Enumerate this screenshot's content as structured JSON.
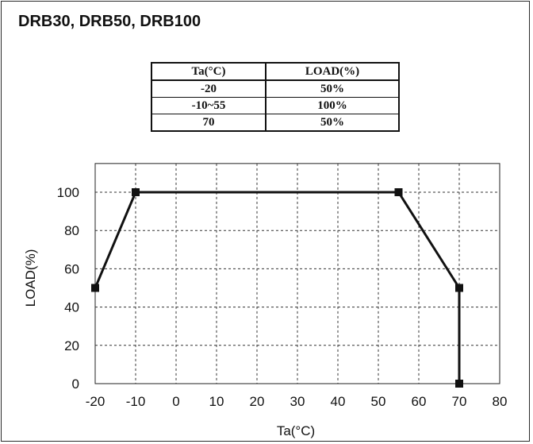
{
  "title": "DRB30, DRB50, DRB100",
  "table": {
    "headers": [
      "Ta(°C)",
      "LOAD(%)"
    ],
    "rows": [
      [
        "-20",
        "50%"
      ],
      [
        "-10~55",
        "100%"
      ],
      [
        "70",
        "50%"
      ]
    ]
  },
  "chart_data": {
    "type": "line",
    "xlabel": "Ta(°C)",
    "ylabel": "LOAD(%)",
    "xlim": [
      -20,
      80
    ],
    "ylim": [
      0,
      100
    ],
    "x_ticks": [
      -20,
      -10,
      0,
      10,
      20,
      30,
      40,
      50,
      60,
      70,
      80
    ],
    "y_ticks": [
      0,
      20,
      40,
      60,
      80,
      100
    ],
    "y_max_extent": 115,
    "grid": true,
    "series": [
      {
        "points": [
          [
            -20,
            50
          ],
          [
            -10,
            100
          ],
          [
            55,
            100
          ],
          [
            70,
            50
          ],
          [
            70,
            0
          ]
        ],
        "color": "#111111"
      }
    ]
  }
}
